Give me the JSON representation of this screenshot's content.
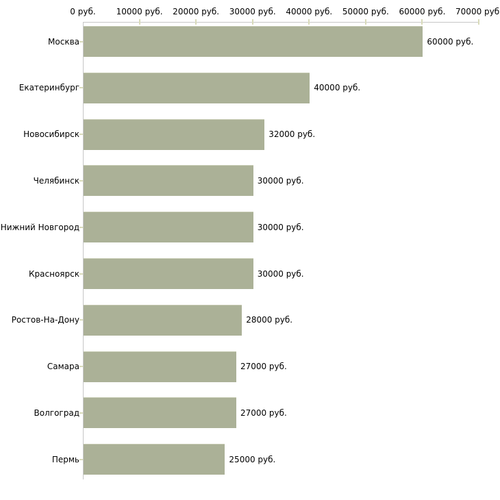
{
  "chart_data": {
    "type": "bar",
    "orientation": "horizontal",
    "title": "",
    "xlabel": "",
    "ylabel": "",
    "xlim": [
      0,
      70000
    ],
    "grid": false,
    "legend": null,
    "categories": [
      "Москва",
      "Екатеринбург",
      "Новосибирск",
      "Челябинск",
      "Нижний Новгород",
      "Красноярск",
      "Ростов-На-Дону",
      "Самара",
      "Волгоград",
      "Пермь"
    ],
    "values": [
      60000,
      40000,
      32000,
      30000,
      30000,
      30000,
      28000,
      27000,
      27000,
      25000
    ],
    "value_labels": [
      "60000 руб.",
      "40000 руб.",
      "32000 руб.",
      "30000 руб.",
      "30000 руб.",
      "30000 руб.",
      "28000 руб.",
      "27000 руб.",
      "27000 руб.",
      "25000 руб."
    ],
    "x_ticks": [
      0,
      10000,
      20000,
      30000,
      40000,
      50000,
      60000,
      70000
    ],
    "x_tick_labels": [
      "0 руб.",
      "10000 руб.",
      "20000 руб.",
      "30000 руб.",
      "40000 руб.",
      "50000 руб.",
      "60000 руб.",
      "70000 руб."
    ],
    "colors": {
      "bar_fill": "#abb197",
      "bar_top_edge": "#c4c9b0",
      "axis_line": "#c6c6c6",
      "tick_mark": "#d9dbba",
      "text": "#000000",
      "background": "#ffffff"
    }
  }
}
